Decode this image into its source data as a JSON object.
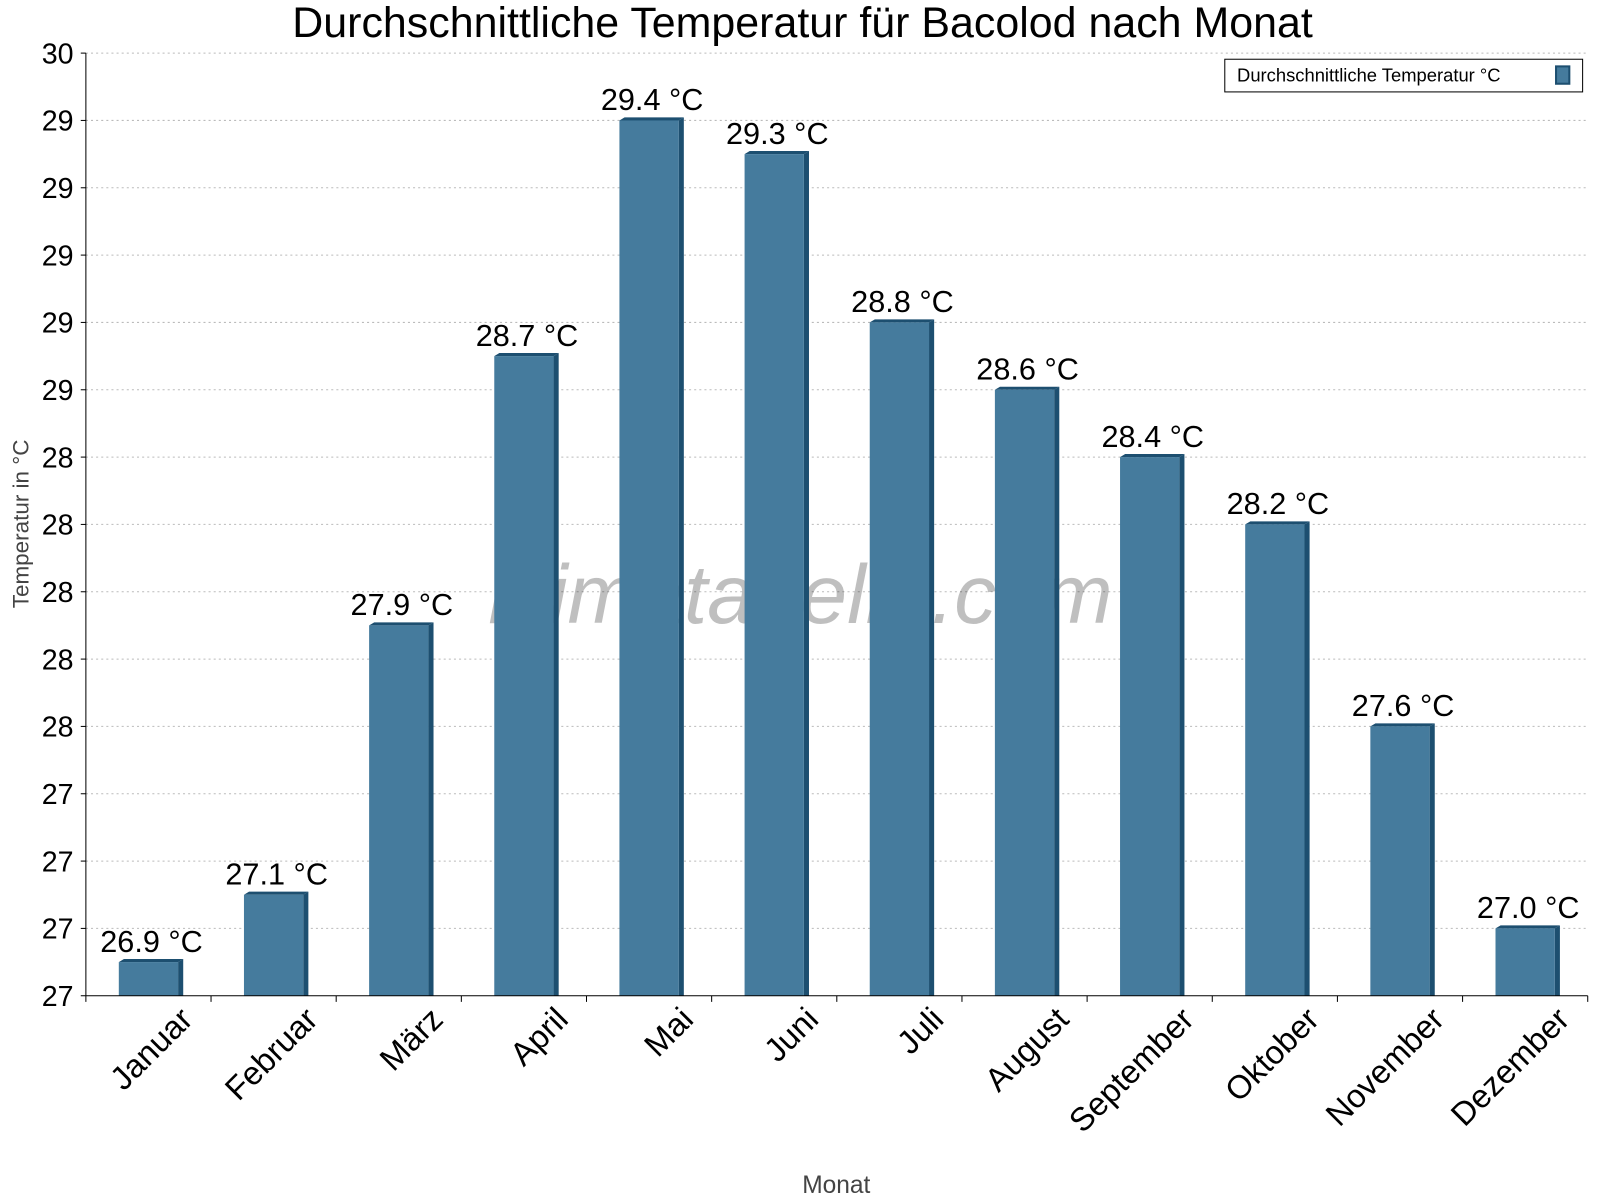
{
  "chart_data": {
    "type": "bar",
    "title": "Durchschnittliche Temperatur für Bacolod nach Monat",
    "xlabel": "Monat",
    "ylabel": "Temperatur in °C",
    "categories": [
      "Januar",
      "Februar",
      "März",
      "April",
      "Mai",
      "Juni",
      "Juli",
      "August",
      "September",
      "Oktober",
      "November",
      "Dezember"
    ],
    "series": [
      {
        "name": "Durchschnittliche Temperatur °C",
        "values": [
          26.9,
          27.1,
          27.9,
          28.7,
          29.4,
          29.3,
          28.8,
          28.6,
          28.4,
          28.2,
          27.6,
          27.0
        ],
        "data_labels": [
          "26.9 °C",
          "27.1 °C",
          "27.9 °C",
          "28.7 °C",
          "29.4 °C",
          "29.3 °C",
          "28.8 °C",
          "28.6 °C",
          "28.4 °C",
          "28.2 °C",
          "27.6 °C",
          "27.0 °C"
        ]
      }
    ],
    "ylim": [
      26.8,
      29.6
    ],
    "y_ticks": [
      26.8,
      27.0,
      27.2,
      27.4,
      27.6,
      27.8,
      28.0,
      28.2,
      28.4,
      28.6,
      28.8,
      29.0,
      29.2,
      29.4,
      29.6
    ],
    "y_tick_labels": [
      "27",
      "27",
      "27",
      "27",
      "28",
      "28",
      "28",
      "28",
      "28",
      "29",
      "29",
      "29",
      "29",
      "29",
      "30"
    ],
    "grid": true,
    "legend_position": "top-right",
    "colors": {
      "bar": "#457b9d",
      "bar_side": "#1d4f70"
    },
    "watermark": "klimatabelle.com"
  }
}
